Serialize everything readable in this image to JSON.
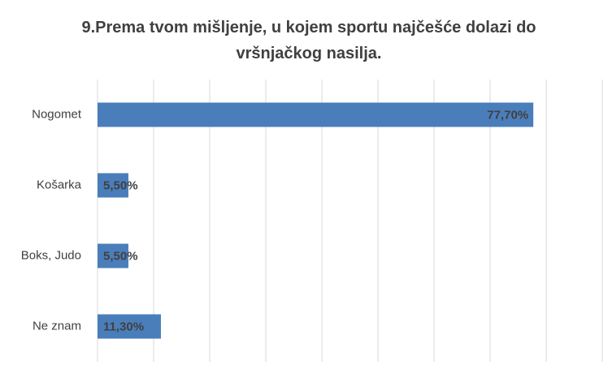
{
  "chart_data": {
    "type": "hbar",
    "title": "9.Prema tvom mišljenje, u kojem sportu najčešće dolazi do vršnjačkog nasilja.",
    "categories": [
      "Nogomet",
      "Košarka",
      "Boks, Judo",
      "Ne znam"
    ],
    "values": [
      77.7,
      5.5,
      5.5,
      11.3
    ],
    "value_labels": [
      "77,70%",
      "5,50%",
      "5,50%",
      "11,30%"
    ],
    "color": "#4a7ebb",
    "xlim": [
      0,
      90
    ],
    "xticks": [
      0,
      10,
      20,
      30,
      40,
      50,
      60,
      70,
      80,
      90
    ],
    "grid": true
  }
}
